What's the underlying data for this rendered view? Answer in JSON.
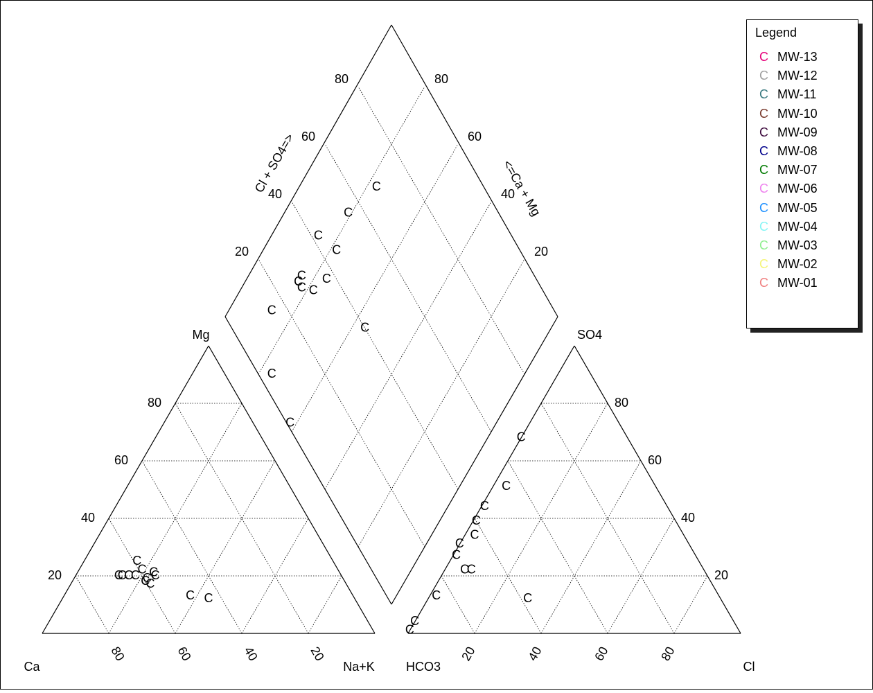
{
  "chart_data": {
    "type": "scatter",
    "subtype": "piper-diagram",
    "legend": {
      "title": "Legend",
      "placement": "top-right",
      "symbol": "C",
      "items": [
        {
          "name": "MW-13",
          "color": "#e6007a"
        },
        {
          "name": "MW-12",
          "color": "#a0a0a0"
        },
        {
          "name": "MW-11",
          "color": "#3a7a80"
        },
        {
          "name": "MW-10",
          "color": "#7a3b2e"
        },
        {
          "name": "MW-09",
          "color": "#3d0a3d"
        },
        {
          "name": "MW-08",
          "color": "#00008b"
        },
        {
          "name": "MW-07",
          "color": "#007a00"
        },
        {
          "name": "MW-06",
          "color": "#ee82ee"
        },
        {
          "name": "MW-05",
          "color": "#1e90ff"
        },
        {
          "name": "MW-04",
          "color": "#87f5f5"
        },
        {
          "name": "MW-03",
          "color": "#90ee90"
        },
        {
          "name": "MW-02",
          "color": "#f5f57a"
        },
        {
          "name": "MW-01",
          "color": "#f08080"
        }
      ]
    },
    "cation_triangle": {
      "corner_labels": {
        "left": "Ca",
        "right": "Na+K",
        "top": "Mg"
      },
      "left_ticks": [
        "20",
        "40",
        "60",
        "80"
      ],
      "bottom_ticks": [
        "80",
        "60",
        "40",
        "20"
      ],
      "grid": true,
      "points": [
        {
          "name": "MW-13",
          "Mg": 13,
          "NaK": 38
        },
        {
          "name": "MW-12",
          "Mg": 17,
          "NaK": 24
        },
        {
          "name": "MW-11",
          "Mg": 20,
          "NaK": 18
        },
        {
          "name": "MW-10",
          "Mg": 18,
          "NaK": 22
        },
        {
          "name": "MW-09",
          "Mg": 12,
          "NaK": 44
        },
        {
          "name": "MW-08",
          "Mg": 19,
          "NaK": 22
        },
        {
          "name": "MW-07",
          "Mg": 21,
          "NaK": 23
        },
        {
          "name": "MW-06",
          "Mg": 22,
          "NaK": 19
        },
        {
          "name": "MW-05",
          "Mg": 20,
          "NaK": 16
        },
        {
          "name": "MW-04",
          "Mg": 20,
          "NaK": 14
        },
        {
          "name": "MW-03",
          "Mg": 25,
          "NaK": 16
        },
        {
          "name": "MW-02",
          "Mg": 20,
          "NaK": 24
        },
        {
          "name": "MW-01",
          "Mg": 20,
          "NaK": 13
        }
      ]
    },
    "anion_triangle": {
      "corner_labels": {
        "left": "HCO3",
        "right": "Cl",
        "top": "SO4"
      },
      "bottom_ticks": [
        "20",
        "40",
        "60",
        "80"
      ],
      "right_ticks": [
        "80",
        "60",
        "40",
        "20"
      ],
      "grid": true,
      "points": [
        {
          "name": "MW-13",
          "SO4": 1,
          "Cl": 0
        },
        {
          "name": "MW-12",
          "SO4": 4,
          "Cl": 0
        },
        {
          "name": "MW-11",
          "SO4": 27,
          "Cl": 1
        },
        {
          "name": "MW-10",
          "SO4": 31,
          "Cl": 0
        },
        {
          "name": "MW-09",
          "SO4": 39,
          "Cl": 1
        },
        {
          "name": "MW-08",
          "SO4": 44,
          "Cl": 1
        },
        {
          "name": "MW-07",
          "SO4": 68,
          "Cl": 0
        },
        {
          "name": "MW-06",
          "SO4": 51,
          "Cl": 4
        },
        {
          "name": "MW-05",
          "SO4": 22,
          "Cl": 6
        },
        {
          "name": "MW-04",
          "SO4": 12,
          "Cl": 30
        },
        {
          "name": "MW-03",
          "SO4": 22,
          "Cl": 8
        },
        {
          "name": "MW-02",
          "SO4": 34,
          "Cl": 3
        },
        {
          "name": "MW-01",
          "SO4": 13,
          "Cl": 2
        }
      ]
    },
    "diamond": {
      "left_axis_label": "Cl + SO4=>",
      "right_axis_label": "<=Ca + Mg",
      "left_ticks": [
        "20",
        "40",
        "60",
        "80"
      ],
      "right_ticks": [
        "20",
        "40",
        "60",
        "80"
      ],
      "grid": true,
      "points": [
        {
          "name": "MW-13",
          "ClSO4": 1,
          "CaMg": 62
        },
        {
          "name": "MW-12",
          "ClSO4": 4,
          "CaMg": 76
        },
        {
          "name": "MW-11",
          "ClSO4": 28,
          "CaMg": 82
        },
        {
          "name": "MW-10",
          "ClSO4": 31,
          "CaMg": 78
        },
        {
          "name": "MW-09",
          "ClSO4": 40,
          "CaMg": 56
        },
        {
          "name": "MW-08",
          "ClSO4": 45,
          "CaMg": 78
        },
        {
          "name": "MW-07",
          "ClSO4": 68,
          "CaMg": 77
        },
        {
          "name": "MW-06",
          "ClSO4": 55,
          "CaMg": 81
        },
        {
          "name": "MW-05",
          "ClSO4": 28,
          "CaMg": 84
        },
        {
          "name": "MW-04",
          "ClSO4": 42,
          "CaMg": 86
        },
        {
          "name": "MW-03",
          "ClSO4": 30,
          "CaMg": 84
        },
        {
          "name": "MW-02",
          "ClSO4": 37,
          "CaMg": 76
        },
        {
          "name": "MW-01",
          "ClSO4": 15,
          "CaMg": 87
        }
      ]
    }
  }
}
